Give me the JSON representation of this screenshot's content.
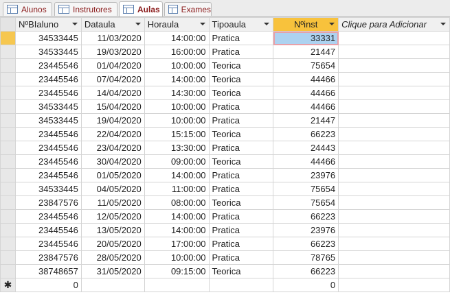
{
  "tabs": [
    {
      "label": "Alunos",
      "active": false
    },
    {
      "label": "Instrutores",
      "active": false
    },
    {
      "label": "Aulas",
      "active": true
    },
    {
      "label": "Exames",
      "active": false
    }
  ],
  "columns": [
    "NºBIaluno",
    "Dataula",
    "Horaula",
    "Tipoaula",
    "Nºinst",
    "Clique para Adicionar"
  ],
  "rows": [
    [
      "34533445",
      "11/03/2020",
      "14:00:00",
      "Pratica",
      "33331"
    ],
    [
      "34533445",
      "19/03/2020",
      "16:00:00",
      "Pratica",
      "21447"
    ],
    [
      "23445546",
      "01/04/2020",
      "10:00:00",
      "Teorica",
      "75654"
    ],
    [
      "23445546",
      "07/04/2020",
      "14:00:00",
      "Teorica",
      "44466"
    ],
    [
      "23445546",
      "14/04/2020",
      "14:30:00",
      "Teorica",
      "44466"
    ],
    [
      "34533445",
      "15/04/2020",
      "10:00:00",
      "Pratica",
      "44466"
    ],
    [
      "34533445",
      "19/04/2020",
      "10:00:00",
      "Pratica",
      "21447"
    ],
    [
      "23445546",
      "22/04/2020",
      "15:15:00",
      "Teorica",
      "66223"
    ],
    [
      "23445546",
      "23/04/2020",
      "13:30:00",
      "Pratica",
      "24443"
    ],
    [
      "23445546",
      "30/04/2020",
      "09:00:00",
      "Teorica",
      "44466"
    ],
    [
      "23445546",
      "01/05/2020",
      "14:00:00",
      "Pratica",
      "23976"
    ],
    [
      "34533445",
      "04/05/2020",
      "11:00:00",
      "Pratica",
      "75654"
    ],
    [
      "23847576",
      "11/05/2020",
      "08:00:00",
      "Teorica",
      "75654"
    ],
    [
      "23445546",
      "12/05/2020",
      "14:00:00",
      "Pratica",
      "66223"
    ],
    [
      "23445546",
      "13/05/2020",
      "14:00:00",
      "Pratica",
      "23976"
    ],
    [
      "23445546",
      "20/05/2020",
      "17:00:00",
      "Pratica",
      "66223"
    ],
    [
      "23847576",
      "28/05/2020",
      "10:00:00",
      "Pratica",
      "78765"
    ],
    [
      "38748657",
      "31/05/2020",
      "09:15:00",
      "Teorica",
      "66223"
    ]
  ],
  "new_row": {
    "marker": "✱",
    "nbialuno": "0",
    "ninst": "0"
  },
  "colors": {
    "active_header": "#f8c23c",
    "selected_cell": "#add2f0",
    "tab_text": "#8a1b1b"
  }
}
